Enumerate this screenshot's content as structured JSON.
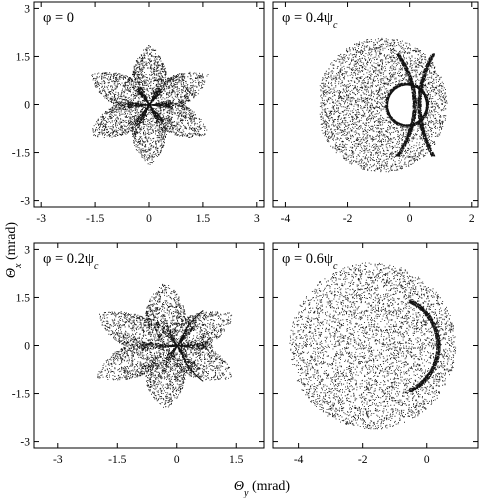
{
  "figure": {
    "y_axis_title": {
      "symbol": "Θ",
      "sub": "x",
      "unit": " (mrad)"
    },
    "x_axis_title": {
      "symbol": "Θ",
      "sub": "y",
      "unit": " (mrad)"
    }
  },
  "chart_data": [
    {
      "type": "scatter",
      "panel": "top-left",
      "label": {
        "main": "φ = 0",
        "sub": ""
      },
      "xlim": [
        -3.2,
        3.2
      ],
      "ylim": [
        -3.2,
        3.2
      ],
      "xticks": [
        -3,
        -1.5,
        0,
        1.5,
        3
      ],
      "xtick_labels": [
        "-3",
        "-1.5",
        "0",
        "1.5",
        "3"
      ],
      "yticks": [
        -3,
        -1.5,
        0,
        1.5,
        3
      ],
      "yticks_labels": [
        "-3",
        "-1.5",
        "0",
        "1.5",
        "3"
      ],
      "show_xtick_labels": true,
      "show_ytick_labels": true,
      "pattern": {
        "kind": "star",
        "cx": 0,
        "cy": 0,
        "inner_r": 0.95,
        "outer_r": 1.9,
        "points": 6,
        "rotation_deg": 90,
        "core": "star-rays",
        "core_len": 0.6
      }
    },
    {
      "type": "scatter",
      "panel": "top-right",
      "label": {
        "main": "φ = 0.4ψ",
        "sub": "c"
      },
      "xlim": [
        -4.4,
        2.2
      ],
      "ylim": [
        -3.2,
        3.2
      ],
      "xticks": [
        -4,
        -2,
        0,
        2
      ],
      "xtick_labels": [
        "-4",
        "-2",
        "0",
        "2"
      ],
      "yticks": [
        -3,
        -1.5,
        0,
        1.5,
        3
      ],
      "yticks_labels": [
        "-3",
        "-1.5",
        "0",
        "1.5",
        "3"
      ],
      "show_xtick_labels": true,
      "show_ytick_labels": false,
      "pattern": {
        "kind": "blob-ring",
        "cx": -0.9,
        "cy": 0,
        "r": 2.1,
        "xmin": -2.9,
        "hole_cx": -0.1,
        "hole_cy": 0,
        "hole_r": 0.62,
        "caustic_cx": 0.3,
        "caustic_cy": 0,
        "caustic_len": 1.6
      }
    },
    {
      "type": "scatter",
      "panel": "bottom-left",
      "label": {
        "main": "φ = 0.2ψ",
        "sub": "c"
      },
      "xlim": [
        -3.6,
        2.2
      ],
      "ylim": [
        -3.2,
        3.2
      ],
      "xticks": [
        -3,
        -1.5,
        0,
        1.5
      ],
      "xtick_labels": [
        "-3",
        "-1.5",
        "0",
        "1.5"
      ],
      "yticks": [
        -3,
        -1.5,
        0,
        1.5,
        3
      ],
      "yticks_labels": [
        "-3",
        "-1.5",
        "0",
        "1.5",
        "3"
      ],
      "show_xtick_labels": true,
      "show_ytick_labels": true,
      "pattern": {
        "kind": "star",
        "cx": -0.3,
        "cy": 0,
        "inner_r": 1.0,
        "outer_r": 2.0,
        "points": 6,
        "rotation_deg": 90,
        "core": "shifted-star",
        "core_cx": 0,
        "core_cy": 0,
        "core_len": 0.9
      }
    },
    {
      "type": "scatter",
      "panel": "bottom-right",
      "label": {
        "main": "φ = 0.6ψ",
        "sub": "c"
      },
      "xlim": [
        -4.8,
        1.6
      ],
      "ylim": [
        -3.2,
        3.2
      ],
      "xticks": [
        -4,
        -2,
        0
      ],
      "xtick_labels": [
        "-4",
        "-2",
        "0"
      ],
      "yticks": [
        -3,
        -1.5,
        0,
        1.5,
        3
      ],
      "yticks_labels": [
        "-3",
        "-1.5",
        "0",
        "1.5",
        "3"
      ],
      "show_xtick_labels": true,
      "show_ytick_labels": false,
      "pattern": {
        "kind": "disc-arc",
        "cx": -1.7,
        "cy": 0,
        "r": 2.6,
        "arc_cx": -1.2,
        "arc_cy": 0,
        "arc_r": 1.55,
        "arc_from_deg": -65,
        "arc_to_deg": 65
      }
    }
  ]
}
